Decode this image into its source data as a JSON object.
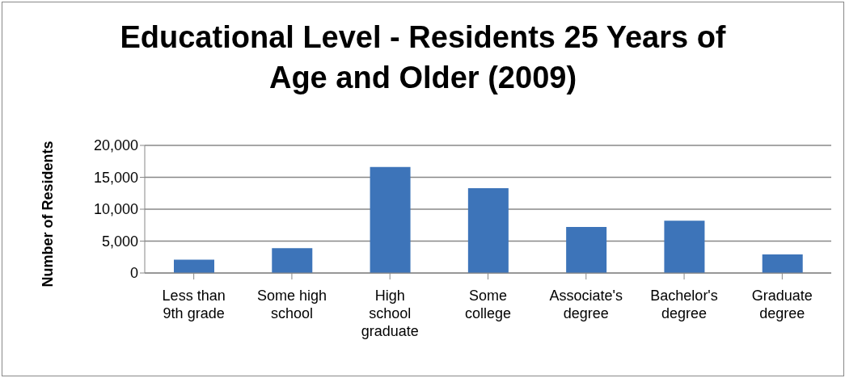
{
  "chart_data": {
    "type": "bar",
    "title": "Educational Level - Residents 25 Years of Age and Older (2009)",
    "ylabel": "Number of Residents",
    "categories": [
      "Less than 9th grade",
      "Some high school",
      "High school graduate",
      "Some college",
      "Associate's degree",
      "Bachelor's degree",
      "Graduate degree"
    ],
    "values": [
      2100,
      3900,
      16600,
      13300,
      7200,
      8200,
      2900
    ],
    "color": "#3d74b9",
    "ylim": [
      0,
      20000
    ],
    "yticks": [
      0,
      {
        "value": 5000,
        "label": "5,000"
      },
      {
        "value": 10000,
        "label": "10,000"
      },
      {
        "value": 15000,
        "label": "15,000"
      },
      {
        "value": 20000,
        "label": "20,000"
      }
    ],
    "grid": "y"
  }
}
